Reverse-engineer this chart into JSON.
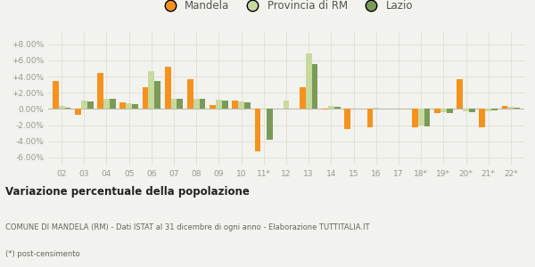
{
  "years": [
    "02",
    "03",
    "04",
    "05",
    "06",
    "07",
    "08",
    "09",
    "10",
    "11*",
    "12",
    "13",
    "14",
    "15",
    "16",
    "17",
    "18*",
    "19*",
    "20*",
    "21*",
    "22*"
  ],
  "mandela": [
    3.5,
    -0.7,
    4.4,
    0.8,
    2.7,
    5.2,
    3.7,
    0.5,
    1.0,
    -5.2,
    0.0,
    2.7,
    -0.05,
    -2.5,
    -2.3,
    0.0,
    -2.3,
    -0.5,
    3.7,
    -2.3,
    0.4
  ],
  "provincia_rm": [
    0.4,
    1.0,
    1.3,
    0.7,
    4.7,
    1.2,
    1.2,
    1.1,
    0.9,
    -0.1,
    1.0,
    6.9,
    0.4,
    0.0,
    0.15,
    0.0,
    -2.1,
    -0.4,
    -0.3,
    -0.3,
    0.25
  ],
  "lazio": [
    0.15,
    0.9,
    1.2,
    0.55,
    3.4,
    1.2,
    1.2,
    1.0,
    0.8,
    -3.8,
    0.0,
    5.5,
    0.3,
    0.0,
    0.0,
    0.0,
    -2.2,
    -0.5,
    -0.4,
    -0.2,
    0.1
  ],
  "color_mandela": "#f5921e",
  "color_provincia": "#c8d9a0",
  "color_lazio": "#7a9b57",
  "background_color": "#f2f2ee",
  "grid_color": "#e0e0d4",
  "ylim": [
    -7.0,
    9.5
  ],
  "yticks": [
    -6.0,
    -4.0,
    -2.0,
    0.0,
    2.0,
    4.0,
    6.0,
    8.0
  ],
  "ytick_labels": [
    "-6.00%",
    "-4.00%",
    "-2.00%",
    "0.00%",
    "+2.00%",
    "+4.00%",
    "+6.00%",
    "+8.00%"
  ],
  "title_bold": "Variazione percentuale della popolazione",
  "subtitle": "COMUNE DI MANDELA (RM) - Dati ISTAT al 31 dicembre di ogni anno - Elaborazione TUTTITALIA.IT",
  "footnote": "(*) post-censimento",
  "bar_width": 0.27,
  "legend_labels": [
    "Mandela",
    "Provincia di RM",
    "Lazio"
  ]
}
